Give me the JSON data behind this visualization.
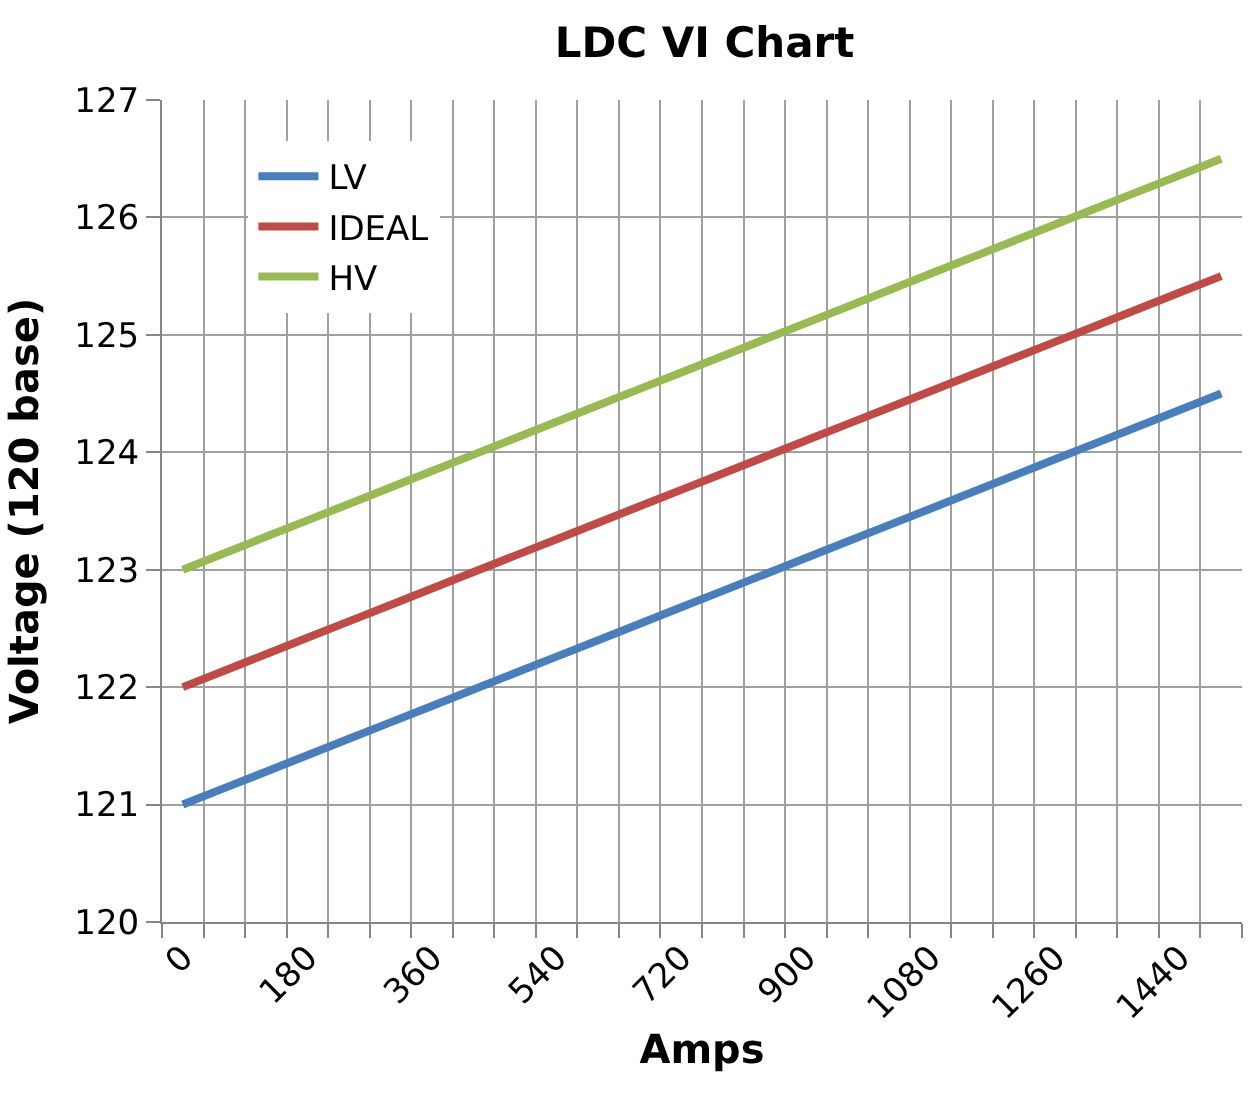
{
  "chart_data": {
    "type": "line",
    "title": "LDC VI Chart",
    "xlabel": "Amps",
    "ylabel": "Voltage (120 base)",
    "categories": [
      "0",
      null,
      null,
      "180",
      null,
      null,
      "360",
      null,
      null,
      "540",
      null,
      null,
      "720",
      null,
      null,
      "900",
      null,
      null,
      "1080",
      null,
      null,
      "1260",
      null,
      null,
      "1440",
      null
    ],
    "series": [
      {
        "name": "LV",
        "color": "#4a7ebb",
        "values": [
          121.0,
          121.14,
          121.28,
          121.42,
          121.56,
          121.7,
          121.84,
          121.98,
          122.12,
          122.26,
          122.4,
          122.54,
          122.68,
          122.82,
          122.96,
          123.1,
          123.24,
          123.38,
          123.52,
          123.66,
          123.8,
          123.94,
          124.08,
          124.22,
          124.36,
          124.5
        ]
      },
      {
        "name": "IDEAL",
        "color": "#be4b48",
        "values": [
          122.0,
          122.14,
          122.28,
          122.42,
          122.56,
          122.7,
          122.84,
          122.98,
          123.12,
          123.26,
          123.4,
          123.54,
          123.68,
          123.82,
          123.96,
          124.1,
          124.24,
          124.38,
          124.52,
          124.66,
          124.8,
          124.94,
          125.08,
          125.22,
          125.36,
          125.5
        ]
      },
      {
        "name": "HV",
        "color": "#98b954",
        "values": [
          123.0,
          123.14,
          123.28,
          123.42,
          123.56,
          123.7,
          123.84,
          123.98,
          124.12,
          124.26,
          124.4,
          124.54,
          124.68,
          124.82,
          124.96,
          125.1,
          125.24,
          125.38,
          125.52,
          125.66,
          125.8,
          125.94,
          126.08,
          126.22,
          126.36,
          126.5
        ]
      }
    ],
    "ylim": [
      120,
      127
    ],
    "yticks": [
      120,
      121,
      122,
      123,
      124,
      125,
      126,
      127
    ],
    "grid": true,
    "legend": "top left",
    "marker": "none",
    "line_style": "solid"
  }
}
